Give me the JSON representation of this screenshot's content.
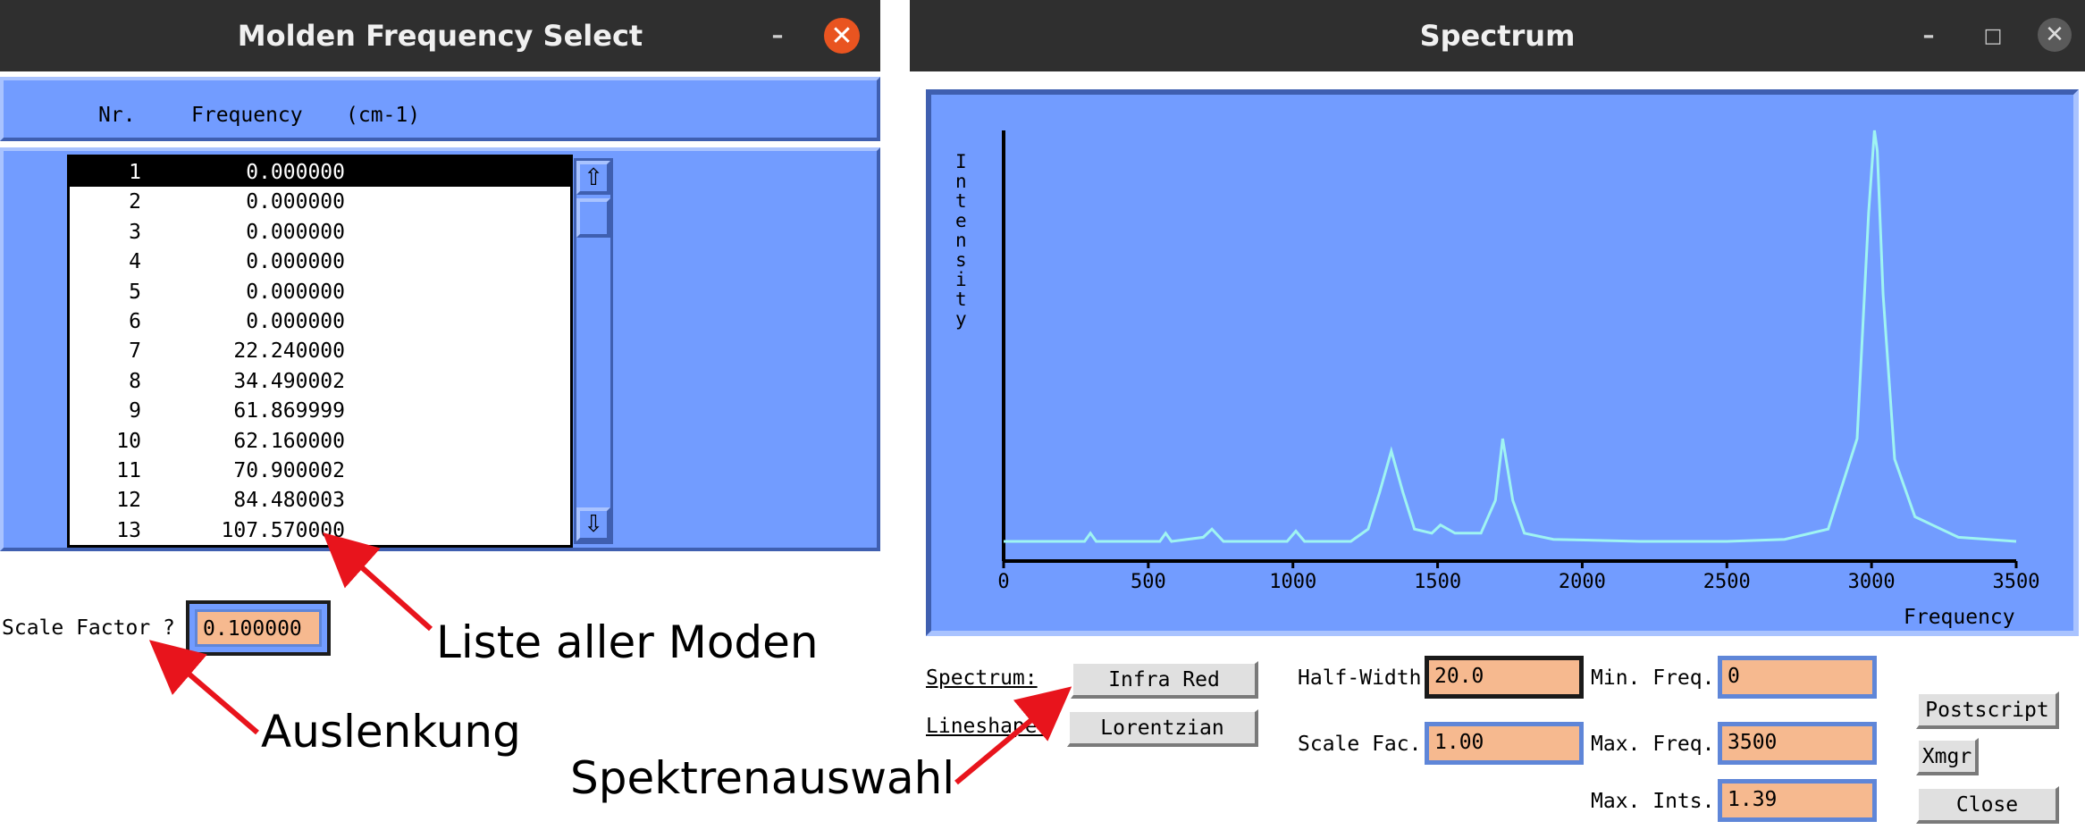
{
  "freq_window": {
    "title": "Molden Frequency Select",
    "header": {
      "nr": "Nr.",
      "frequency": "Frequency",
      "unit": "(cm-1)"
    },
    "rows": [
      {
        "nr": "1",
        "freq": "0.000000"
      },
      {
        "nr": "2",
        "freq": "0.000000"
      },
      {
        "nr": "3",
        "freq": "0.000000"
      },
      {
        "nr": "4",
        "freq": "0.000000"
      },
      {
        "nr": "5",
        "freq": "0.000000"
      },
      {
        "nr": "6",
        "freq": "0.000000"
      },
      {
        "nr": "7",
        "freq": "22.240000"
      },
      {
        "nr": "8",
        "freq": "34.490002"
      },
      {
        "nr": "9",
        "freq": "61.869999"
      },
      {
        "nr": "10",
        "freq": "62.160000"
      },
      {
        "nr": "11",
        "freq": "70.900002"
      },
      {
        "nr": "12",
        "freq": "84.480003"
      },
      {
        "nr": "13",
        "freq": "107.570000"
      }
    ],
    "selected_index": 0,
    "scale_factor_label": "Scale Factor ?",
    "scale_factor_value": "0.100000"
  },
  "spectrum_window": {
    "title": "Spectrum",
    "plot": {
      "ylabel": "Intensity",
      "xlabel": "Frequency",
      "xticks": [
        "0",
        "500",
        "1000",
        "1500",
        "2000",
        "2500",
        "3000",
        "3500"
      ],
      "xlim": [
        0,
        3500
      ]
    },
    "spectrum_label": "Spectrum:",
    "spectrum_button": "Infra Red",
    "lineshape_label": "Lineshape:",
    "lineshape_button": "Lorentzian",
    "half_width_label": "Half-Width",
    "half_width_value": "20.0",
    "scale_fac_label": "Scale Fac.",
    "scale_fac_value": "1.00",
    "min_freq_label": "Min. Freq.",
    "min_freq_value": "0",
    "max_freq_label": "Max. Freq.",
    "max_freq_value": "3500",
    "max_ints_label": "Max. Ints.",
    "max_ints_value": "1.39",
    "postscript_button": "Postscript",
    "xmgr_button": "Xmgr",
    "close_button": "Close"
  },
  "annotations": {
    "modes": "Liste aller Moden",
    "displacement": "Auslenkung",
    "spectra": "Spektrenauswahl"
  },
  "colors": {
    "motif_blue": "#729cff",
    "field_orange": "#f6b98f",
    "trace_cyan": "#9ff4f2",
    "arrow_red": "#e8141c",
    "close_orange": "#e95420"
  },
  "chart_data": {
    "type": "line",
    "xlabel": "Frequency",
    "ylabel": "Intensity",
    "xlim": [
      0,
      3500
    ],
    "series": [
      {
        "x": [
          0,
          280,
          300,
          320,
          540,
          560,
          580,
          690,
          720,
          760,
          980,
          1010,
          1040,
          1200,
          1260,
          1300,
          1340,
          1380,
          1420,
          1480,
          1510,
          1560,
          1650,
          1700,
          1725,
          1760,
          1800,
          1900,
          2200,
          2500,
          2700,
          2850,
          2950,
          2990,
          3010,
          3020,
          3040,
          3080,
          3150,
          3300,
          3500
        ],
        "y": [
          0.0,
          0.0,
          0.02,
          0.0,
          0.0,
          0.02,
          0.0,
          0.01,
          0.03,
          0.0,
          0.0,
          0.025,
          0.0,
          0.0,
          0.03,
          0.12,
          0.22,
          0.12,
          0.03,
          0.02,
          0.04,
          0.02,
          0.02,
          0.1,
          0.25,
          0.1,
          0.02,
          0.005,
          0.0,
          0.0,
          0.005,
          0.03,
          0.25,
          0.8,
          1.0,
          0.95,
          0.6,
          0.2,
          0.06,
          0.01,
          0.0
        ]
      }
    ]
  }
}
